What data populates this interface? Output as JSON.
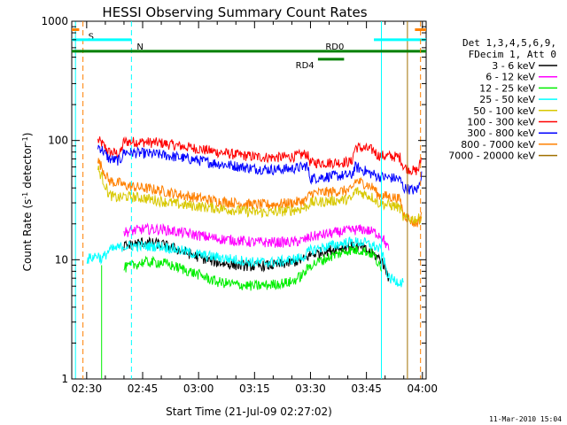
{
  "chart_data": {
    "type": "line",
    "title": "HESSI Observing Summary Count Rates",
    "xlabel": "Start Time (21-Jul-09 02:27:02)",
    "ylabel": "Count Rate (s⁻¹ detector⁻¹)",
    "ylabel_parts": [
      "Count Rate (s",
      "-1",
      " detector",
      "-1",
      ")"
    ],
    "ylog": true,
    "ylim": [
      1,
      1000
    ],
    "xlim_minutes": [
      -4,
      91
    ],
    "x_ticks": [
      {
        "label": "02:30",
        "min": 0
      },
      {
        "label": "02:45",
        "min": 15
      },
      {
        "label": "03:00",
        "min": 30
      },
      {
        "label": "03:15",
        "min": 45
      },
      {
        "label": "03:30",
        "min": 60
      },
      {
        "label": "03:45",
        "min": 75
      },
      {
        "label": "04:00",
        "min": 90
      }
    ],
    "y_ticks": [
      {
        "label": "1",
        "value": 1
      },
      {
        "label": "10",
        "value": 10
      },
      {
        "label": "100",
        "value": 100
      },
      {
        "label": "1000",
        "value": 1000
      }
    ],
    "legend": {
      "placement": "right",
      "header": [
        "Det 1,3,4,5,6,9,",
        "FDecim 1, Att 0"
      ],
      "entries": [
        {
          "label": "3 - 6 keV",
          "color": "#000000"
        },
        {
          "label": "6 - 12 keV",
          "color": "#ff00ff"
        },
        {
          "label": "12 - 25 keV",
          "color": "#00ee00"
        },
        {
          "label": "25 - 50 keV",
          "color": "#00ffff"
        },
        {
          "label": "50 - 100 keV",
          "color": "#d8c800"
        },
        {
          "label": "100 - 300 keV",
          "color": "#ff0000"
        },
        {
          "label": "300 - 800 keV",
          "color": "#0000ff"
        },
        {
          "label": "800 - 7000 keV",
          "color": "#ff8000"
        },
        {
          "label": "7000 - 20000 keV",
          "color": "#a07000"
        }
      ]
    },
    "series": [
      {
        "name": "100 - 300 keV",
        "color": "#ff0000",
        "segments": [
          [
            [
              3,
              100
            ],
            [
              4,
              95
            ],
            [
              6,
              80
            ],
            [
              8,
              78
            ],
            [
              9,
              78
            ],
            [
              10,
              98
            ],
            [
              15,
              97
            ],
            [
              20,
              95
            ],
            [
              25,
              90
            ],
            [
              30,
              85
            ],
            [
              35,
              80
            ],
            [
              40,
              76
            ],
            [
              45,
              73
            ],
            [
              50,
              72
            ],
            [
              55,
              73
            ],
            [
              58,
              76
            ],
            [
              59,
              78
            ],
            [
              60,
              65
            ],
            [
              65,
              65
            ],
            [
              70,
              66
            ],
            [
              71,
              66
            ],
            [
              72,
              88
            ],
            [
              75,
              85
            ],
            [
              76,
              84
            ],
            [
              77,
              83
            ],
            [
              78,
              75
            ],
            [
              83,
              73
            ],
            [
              84,
              72
            ],
            [
              85,
              60
            ],
            [
              88,
              55
            ],
            [
              89,
              58
            ],
            [
              89.8,
              72
            ]
          ]
        ]
      },
      {
        "name": "300 - 800 keV",
        "color": "#0000ff",
        "segments": [
          [
            [
              3,
              90
            ],
            [
              4,
              85
            ],
            [
              6,
              70
            ],
            [
              8,
              68
            ],
            [
              9,
              68
            ],
            [
              10,
              80
            ],
            [
              15,
              78
            ],
            [
              20,
              76
            ],
            [
              25,
              72
            ],
            [
              30,
              68
            ],
            [
              35,
              64
            ],
            [
              40,
              61
            ],
            [
              45,
              58
            ],
            [
              50,
              57
            ],
            [
              55,
              58
            ],
            [
              58,
              60
            ],
            [
              59,
              62
            ],
            [
              60,
              48
            ],
            [
              65,
              50
            ],
            [
              70,
              51
            ],
            [
              71,
              51
            ],
            [
              72,
              60
            ],
            [
              75,
              55
            ],
            [
              76,
              53
            ],
            [
              77,
              52
            ],
            [
              78,
              50
            ],
            [
              83,
              48
            ],
            [
              84,
              47
            ],
            [
              85,
              40
            ],
            [
              88,
              38
            ],
            [
              89,
              40
            ],
            [
              89.8,
              55
            ]
          ]
        ]
      },
      {
        "name": "800 - 7000 keV",
        "color": "#ff8000",
        "segments": [
          [
            [
              3,
              68
            ],
            [
              4,
              60
            ],
            [
              6,
              46
            ],
            [
              8,
              44
            ],
            [
              9,
              44
            ],
            [
              10,
              42
            ],
            [
              15,
              40
            ],
            [
              20,
              38
            ],
            [
              25,
              35
            ],
            [
              30,
              33
            ],
            [
              35,
              31
            ],
            [
              40,
              30
            ],
            [
              45,
              29
            ],
            [
              50,
              29
            ],
            [
              55,
              30
            ],
            [
              58,
              31
            ],
            [
              59,
              32
            ],
            [
              60,
              36
            ],
            [
              65,
              37
            ],
            [
              70,
              38
            ],
            [
              71,
              38
            ],
            [
              72,
              46
            ],
            [
              75,
              43
            ],
            [
              76,
              41
            ],
            [
              77,
              40
            ],
            [
              78,
              35
            ],
            [
              83,
              33
            ],
            [
              84,
              32
            ],
            [
              85,
              24
            ],
            [
              88,
              20
            ],
            [
              89,
              21
            ],
            [
              89.8,
              25
            ]
          ]
        ]
      },
      {
        "name": "50 - 100 keV",
        "color": "#d8c800",
        "segments": [
          [
            [
              3,
              58
            ],
            [
              4,
              50
            ],
            [
              6,
              35
            ],
            [
              8,
              33
            ],
            [
              9,
              33
            ],
            [
              10,
              34
            ],
            [
              15,
              33
            ],
            [
              20,
              31
            ],
            [
              25,
              29
            ],
            [
              30,
              28
            ],
            [
              35,
              27
            ],
            [
              40,
              26
            ],
            [
              45,
              25
            ],
            [
              50,
              25
            ],
            [
              55,
              26
            ],
            [
              58,
              27
            ],
            [
              59,
              28
            ],
            [
              60,
              30
            ],
            [
              65,
              31
            ],
            [
              70,
              32
            ],
            [
              71,
              32
            ],
            [
              72,
              38
            ],
            [
              75,
              35
            ],
            [
              76,
              34
            ],
            [
              77,
              33
            ],
            [
              78,
              30
            ],
            [
              83,
              28
            ],
            [
              84,
              27
            ],
            [
              85,
              22
            ],
            [
              88,
              22
            ],
            [
              89,
              22
            ],
            [
              89.8,
              23
            ]
          ]
        ]
      },
      {
        "name": "6 - 12 keV",
        "color": "#ff00ff",
        "segments": [
          [
            [
              10,
              17
            ],
            [
              15,
              18
            ],
            [
              20,
              18
            ],
            [
              25,
              17
            ],
            [
              30,
              16
            ],
            [
              35,
              15
            ],
            [
              40,
              14.5
            ],
            [
              45,
              14
            ],
            [
              50,
              14
            ],
            [
              55,
              14
            ],
            [
              58,
              14.5
            ],
            [
              60,
              15.5
            ],
            [
              65,
              16.5
            ],
            [
              70,
              17.5
            ],
            [
              74,
              18
            ],
            [
              77,
              17
            ],
            [
              79,
              16
            ],
            [
              80,
              14
            ],
            [
              81,
              12
            ]
          ]
        ]
      },
      {
        "name": "3 - 6 keV",
        "color": "#000000",
        "segments": [
          [
            [
              10,
              13
            ],
            [
              15,
              14
            ],
            [
              20,
              13.5
            ],
            [
              25,
              12
            ],
            [
              30,
              10.5
            ],
            [
              35,
              9.5
            ],
            [
              40,
              9
            ],
            [
              45,
              8.8
            ],
            [
              50,
              9
            ],
            [
              55,
              9.5
            ],
            [
              58,
              10
            ],
            [
              60,
              11
            ],
            [
              65,
              12
            ],
            [
              70,
              13
            ],
            [
              74,
              12.5
            ],
            [
              77,
              11
            ],
            [
              79,
              10
            ],
            [
              80,
              8.5
            ],
            [
              81,
              7
            ]
          ]
        ]
      },
      {
        "name": "25 - 50 keV",
        "color": "#00ffff",
        "segments": [
          [
            [
              -3,
              1.0
            ],
            [
              -3,
              1000
            ]
          ],
          [
            [
              0,
              10
            ],
            [
              3,
              11
            ],
            [
              4,
              10
            ],
            [
              6,
              12
            ],
            [
              10,
              13
            ],
            [
              15,
              13
            ],
            [
              20,
              13
            ],
            [
              25,
              12
            ],
            [
              30,
              11
            ],
            [
              35,
              10.5
            ],
            [
              40,
              10
            ],
            [
              45,
              9.5
            ],
            [
              50,
              9.5
            ],
            [
              55,
              10
            ],
            [
              58,
              10.5
            ],
            [
              60,
              12
            ],
            [
              65,
              13
            ],
            [
              70,
              14
            ],
            [
              74,
              14
            ],
            [
              77,
              13
            ],
            [
              79,
              12
            ],
            [
              80,
              9
            ],
            [
              81,
              7
            ],
            [
              84,
              6.5
            ],
            [
              85,
              6.5
            ]
          ],
          [
            [
              79,
              1.0
            ],
            [
              79,
              1000
            ]
          ]
        ]
      },
      {
        "name": "12 - 25 keV",
        "color": "#00ee00",
        "segments": [
          [
            [
              10,
              8.5
            ],
            [
              15,
              9.5
            ],
            [
              20,
              9.5
            ],
            [
              25,
              8.5
            ],
            [
              30,
              7.5
            ],
            [
              35,
              6.5
            ],
            [
              40,
              6.2
            ],
            [
              45,
              6
            ],
            [
              50,
              6.2
            ],
            [
              55,
              6.5
            ],
            [
              58,
              7.5
            ],
            [
              60,
              9
            ],
            [
              65,
              10.5
            ],
            [
              70,
              12
            ],
            [
              74,
              12
            ],
            [
              77,
              11
            ],
            [
              79,
              8
            ]
          ],
          [
            [
              4,
              1.0
            ],
            [
              4,
              9
            ]
          ]
        ]
      },
      {
        "name": "7000 - 20000 keV",
        "color": "#a07000",
        "segments": [
          [
            [
              86,
              1.0
            ],
            [
              86,
              1000
            ]
          ]
        ]
      }
    ],
    "annotations": {
      "attenuator_flags": [
        {
          "label": "S",
          "color": "#ff8000",
          "segments": [
            [
              -4,
              -2
            ]
          ],
          "level": 850,
          "markers": [
            -1
          ]
        },
        {
          "label": "N",
          "color": "#00ffff",
          "segments": [
            [
              -4,
              12
            ],
            [
              77,
              91
            ]
          ],
          "level": 700,
          "markers": [
            12
          ]
        },
        {
          "label": "RD0",
          "color": "#008000",
          "segments": [
            [
              -4,
              91
            ]
          ],
          "level": 560
        },
        {
          "label": "RD4",
          "color": "#008000",
          "segments": [
            [
              62,
              69
            ]
          ],
          "level": 480
        }
      ],
      "orange_right": {
        "color": "#ff8000",
        "segments": [
          [
            88,
            91
          ]
        ],
        "level": 850,
        "marker": 89.5
      },
      "timestamp": "11-Mar-2010 15:04"
    }
  }
}
